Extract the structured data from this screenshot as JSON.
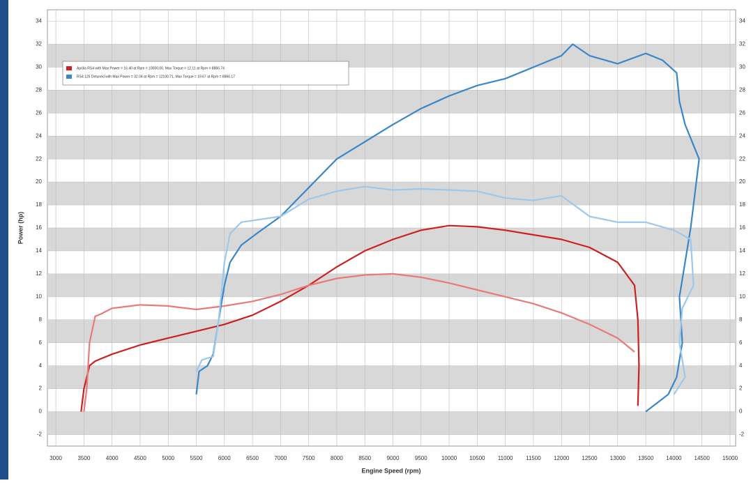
{
  "chart_data": {
    "type": "line",
    "x_label": "Engine Speed (rpm)",
    "y_label": "Power (hp)",
    "xlim": [
      2850,
      15100
    ],
    "ylim": [
      -3,
      35
    ],
    "xticks": [
      3000,
      3500,
      4000,
      4500,
      5000,
      5500,
      6000,
      6500,
      7000,
      7500,
      8000,
      8500,
      9000,
      9500,
      10000,
      10500,
      11000,
      11500,
      12000,
      12500,
      13000,
      13500,
      14000,
      14500,
      15000
    ],
    "yticks": [
      -2,
      0,
      2,
      4,
      6,
      8,
      10,
      12,
      14,
      16,
      18,
      20,
      22,
      24,
      26,
      28,
      30,
      32,
      34
    ],
    "grid": true,
    "legend": "upper left",
    "series": [
      {
        "name": "Aprilia RS4 with Max Power = 16.40 at Rpm = 10000.00, Max Torque = 12.11 at Rpm = 8866.74",
        "color": "#cc2020",
        "x": [
          3450,
          3500,
          3600,
          3700,
          4000,
          4500,
          5000,
          5500,
          6000,
          6500,
          7000,
          7500,
          8000,
          8500,
          9000,
          9500,
          10000,
          10500,
          11000,
          11500,
          12000,
          12500,
          13000,
          13300,
          13360,
          13380,
          13360
        ],
        "values": [
          0,
          2,
          4,
          4.4,
          5,
          5.8,
          6.4,
          7,
          7.6,
          8.4,
          9.6,
          11,
          12.6,
          14,
          15,
          15.8,
          16.2,
          16.1,
          15.8,
          15.4,
          15,
          14.3,
          13,
          11,
          8,
          4,
          0.5
        ]
      },
      {
        "color": "#e87a7a",
        "x": [
          3500,
          3550,
          3600,
          3700,
          3800,
          4000,
          4500,
          5000,
          5500,
          6000,
          6500,
          7000,
          7500,
          8000,
          8500,
          9000,
          9500,
          10000,
          10500,
          11000,
          11500,
          12000,
          12500,
          13000,
          13300
        ],
        "values": [
          0,
          2,
          6,
          8.3,
          8.5,
          9,
          9.3,
          9.2,
          8.9,
          9.2,
          9.6,
          10.2,
          11,
          11.6,
          11.9,
          12,
          11.7,
          11.2,
          10.6,
          10,
          9.4,
          8.6,
          7.6,
          6.4,
          5.2
        ]
      },
      {
        "name": "RS4 125 Detuned with Max Power = 32.04 at Rpm = 12100.71, Max Torque = 19.67 at Rpm = 8866.17",
        "color": "#3a86c8",
        "x": [
          5500,
          5550,
          5700,
          5800,
          5900,
          6000,
          6100,
          6300,
          6600,
          7000,
          7500,
          8000,
          8500,
          9000,
          9500,
          10000,
          10500,
          11000,
          11500,
          12000,
          12200,
          12500,
          13000,
          13500,
          13800,
          14050,
          14100,
          14200,
          14450,
          14300,
          14100,
          14150,
          14050,
          13900,
          13500
        ],
        "values": [
          1.5,
          3.5,
          4,
          5,
          8,
          11,
          13,
          14.5,
          15.6,
          17,
          19.5,
          22,
          23.5,
          25,
          26.4,
          27.5,
          28.4,
          29,
          30,
          31,
          32,
          31,
          30.3,
          31.2,
          30.6,
          29.5,
          27,
          25,
          22,
          16,
          10,
          6,
          3,
          1.5,
          0
        ]
      },
      {
        "color": "#9cc8ec",
        "x": [
          5500,
          5600,
          5800,
          5900,
          6000,
          6100,
          6300,
          7000,
          7500,
          8000,
          8500,
          9000,
          9500,
          10000,
          10500,
          11000,
          11500,
          12000,
          12500,
          13000,
          13500,
          14000,
          14300,
          14350,
          14150,
          14100,
          14200,
          14000
        ],
        "values": [
          3.5,
          4.5,
          4.8,
          8,
          13,
          15.5,
          16.5,
          17,
          18.5,
          19.2,
          19.6,
          19.3,
          19.4,
          19.3,
          19.2,
          18.6,
          18.4,
          18.8,
          17,
          16.5,
          16.5,
          15.8,
          15,
          11,
          9,
          6,
          3,
          1.5
        ]
      }
    ]
  }
}
